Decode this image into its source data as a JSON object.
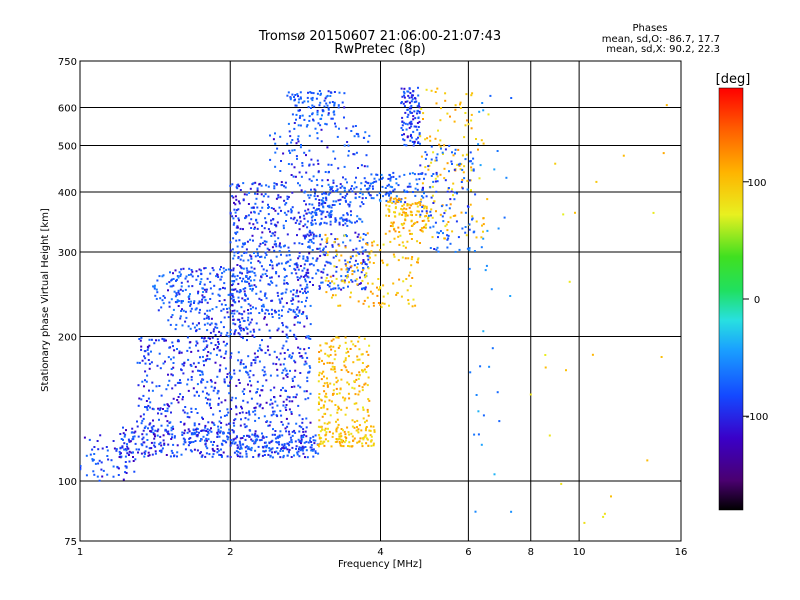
{
  "header": {
    "title_line1": "Tromsø 20150607 21:06:00-21:07:43",
    "title_line2": "RwPretec (8p)"
  },
  "stats": {
    "heading": "Phases",
    "line_o": "mean, sd,O: -86.7, 17.7",
    "line_x": "mean, sd,X:  90.2, 22.3"
  },
  "colorbar": {
    "unit_label": "[deg]",
    "range": [
      -180,
      180
    ],
    "ticks": [
      {
        "value": 100,
        "label": "100"
      },
      {
        "value": 0,
        "label": "0"
      },
      {
        "value": -100,
        "label": "-100"
      }
    ]
  },
  "chart_data": {
    "type": "scatter",
    "xlabel": "Frequency [MHz]",
    "ylabel": "Stationary phase Virtual Height [km]",
    "xscale": "log",
    "yscale": "log",
    "xlim": [
      1,
      16
    ],
    "ylim": [
      75,
      750
    ],
    "grid": true,
    "x_ticks": [
      {
        "value": 1,
        "label": "1"
      },
      {
        "value": 2,
        "label": "2"
      },
      {
        "value": 4,
        "label": "4"
      },
      {
        "value": 6,
        "label": "6"
      },
      {
        "value": 8,
        "label": "8"
      },
      {
        "value": 10,
        "label": "10"
      },
      {
        "value": 16,
        "label": "16"
      }
    ],
    "y_ticks": [
      {
        "value": 75,
        "label": "75"
      },
      {
        "value": 100,
        "label": "100"
      },
      {
        "value": 200,
        "label": "200"
      },
      {
        "value": 300,
        "label": "300"
      },
      {
        "value": 400,
        "label": "400"
      },
      {
        "value": 500,
        "label": "500"
      },
      {
        "value": 600,
        "label": "600"
      },
      {
        "value": 750,
        "label": "750"
      }
    ],
    "color_encoding": "phase [deg]",
    "clusters": [
      {
        "x": [
          1.0,
          1.3
        ],
        "y": [
          100,
          125
        ],
        "phase": -100,
        "n": 70
      },
      {
        "x": [
          1.2,
          2.0
        ],
        "y": [
          112,
          130
        ],
        "phase": -100,
        "n": 220
      },
      {
        "x": [
          2.0,
          3.0
        ],
        "y": [
          112,
          125
        ],
        "phase": -95,
        "n": 220
      },
      {
        "x": [
          1.3,
          2.0
        ],
        "y": [
          125,
          200
        ],
        "phase": -100,
        "n": 330
      },
      {
        "x": [
          1.5,
          2.2
        ],
        "y": [
          200,
          280
        ],
        "phase": -95,
        "n": 220
      },
      {
        "x": [
          1.4,
          1.8
        ],
        "y": [
          225,
          270
        ],
        "phase": -85,
        "n": 60
      },
      {
        "x": [
          2.0,
          2.9
        ],
        "y": [
          125,
          220
        ],
        "phase": -100,
        "n": 320
      },
      {
        "x": [
          2.0,
          2.9
        ],
        "y": [
          220,
          320
        ],
        "phase": -95,
        "n": 320
      },
      {
        "x": [
          2.0,
          2.9
        ],
        "y": [
          320,
          420
        ],
        "phase": -100,
        "n": 200
      },
      {
        "x": [
          2.8,
          3.8
        ],
        "y": [
          250,
          330
        ],
        "phase": -95,
        "n": 170
      },
      {
        "x": [
          2.9,
          3.7
        ],
        "y": [
          340,
          420
        ],
        "phase": -90,
        "n": 170
      },
      {
        "x": [
          3.7,
          4.9
        ],
        "y": [
          380,
          440
        ],
        "phase": -85,
        "n": 100
      },
      {
        "x": [
          2.6,
          3.4
        ],
        "y": [
          550,
          650
        ],
        "phase": -90,
        "n": 110
      },
      {
        "x": [
          2.4,
          3.8
        ],
        "y": [
          420,
          550
        ],
        "phase": -95,
        "n": 110
      },
      {
        "x": [
          4.4,
          4.8
        ],
        "y": [
          500,
          660
        ],
        "phase": -100,
        "n": 110
      },
      {
        "x": [
          3.0,
          3.9
        ],
        "y": [
          118,
          130
        ],
        "phase": 100,
        "n": 120
      },
      {
        "x": [
          3.0,
          3.8
        ],
        "y": [
          130,
          200
        ],
        "phase": 100,
        "n": 190
      },
      {
        "x": [
          3.1,
          4.8
        ],
        "y": [
          230,
          330
        ],
        "phase": 100,
        "n": 150
      },
      {
        "x": [
          4.1,
          5.0
        ],
        "y": [
          330,
          390
        ],
        "phase": 105,
        "n": 110
      },
      {
        "x": [
          4.8,
          6.6
        ],
        "y": [
          320,
          660
        ],
        "phase": 100,
        "n": 130
      },
      {
        "x": [
          4.8,
          6.2
        ],
        "y": [
          300,
          500
        ],
        "phase": -90,
        "n": 110
      },
      {
        "x": [
          6.0,
          7.4
        ],
        "y": [
          85,
          660
        ],
        "phase": -60,
        "n": 40
      },
      {
        "x": [
          8.0,
          15.0
        ],
        "y": [
          80,
          620
        ],
        "phase": 90,
        "n": 22
      }
    ]
  }
}
